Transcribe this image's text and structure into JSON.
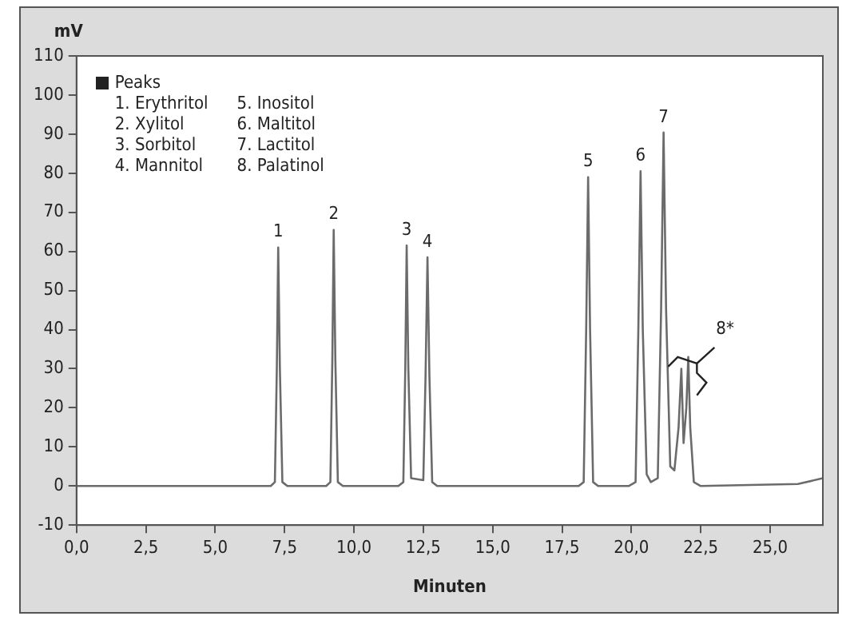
{
  "chart_data": {
    "type": "line",
    "xlabel": "Minuten",
    "ylabel": "mV",
    "x": [
      0,
      7.0,
      7.15,
      7.22,
      7.27,
      7.33,
      7.42,
      7.6,
      9.0,
      9.15,
      9.22,
      9.27,
      9.33,
      9.42,
      9.6,
      11.6,
      11.78,
      11.85,
      11.9,
      11.96,
      12.06,
      12.5,
      12.58,
      12.65,
      12.72,
      12.82,
      13.0,
      18.1,
      18.28,
      18.37,
      18.44,
      18.51,
      18.62,
      18.8,
      19.9,
      20.15,
      20.25,
      20.33,
      20.41,
      20.55,
      20.7,
      20.95,
      21.07,
      21.16,
      21.25,
      21.4,
      21.55,
      21.7,
      21.8,
      21.88,
      21.98,
      22.05,
      22.12,
      22.25,
      22.5,
      26,
      26.9
    ],
    "series": [
      {
        "color": "#6b6b6b",
        "values": [
          0,
          0,
          1,
          30,
          61,
          30,
          1,
          0,
          0,
          1,
          32,
          65.5,
          32,
          1,
          0,
          0,
          1,
          30,
          61.5,
          30,
          2,
          1.5,
          28,
          58.5,
          28,
          1,
          0,
          0,
          1,
          40,
          79,
          40,
          1,
          0,
          0,
          1,
          40,
          80.5,
          40,
          3,
          1,
          2,
          45,
          90.4,
          45,
          5,
          4,
          15,
          30,
          11,
          20,
          33,
          15,
          1,
          0,
          0.5,
          2
        ]
      }
    ],
    "xlim": [
      0,
      26.9
    ],
    "xticks": [
      {
        "value": 0,
        "label": "0,0"
      },
      {
        "value": 2.5,
        "label": "2,5"
      },
      {
        "value": 5,
        "label": "5,0"
      },
      {
        "value": 7.5,
        "label": "7,5"
      },
      {
        "value": 10,
        "label": "10,0"
      },
      {
        "value": 12.5,
        "label": "12,5"
      },
      {
        "value": 15,
        "label": "15,0"
      },
      {
        "value": 17.5,
        "label": "17,5"
      },
      {
        "value": 20,
        "label": "20,0"
      },
      {
        "value": 22.5,
        "label": "22,5"
      },
      {
        "value": 25,
        "label": "25,0"
      }
    ],
    "ylim": [
      -10,
      110
    ],
    "yticks": [
      -10,
      0,
      10,
      20,
      30,
      40,
      50,
      60,
      70,
      80,
      90,
      100,
      110
    ],
    "grid": false,
    "legend": false,
    "marker": "none",
    "line_style": "solid",
    "annotations": [
      "Peaks",
      "1. Erythritol",
      "2. Xylitol",
      "3. Sorbitol",
      "4. Mannitol",
      "5. Inositol",
      "6. Maltitol",
      "7. Lactitol",
      "8. Palatinol",
      {
        "text": "1",
        "x": 7.27,
        "y": 61
      },
      {
        "text": "2",
        "x": 9.27,
        "y": 65.5
      },
      {
        "text": "3",
        "x": 11.9,
        "y": 61.5
      },
      {
        "text": "4",
        "x": 12.65,
        "y": 58.5
      },
      {
        "text": "5",
        "x": 18.44,
        "y": 79
      },
      {
        "text": "6",
        "x": 20.33,
        "y": 80.5
      },
      {
        "text": "7",
        "x": 21.16,
        "y": 90.4
      },
      {
        "text": "8*",
        "x": 21.9,
        "y": 33
      }
    ]
  }
}
